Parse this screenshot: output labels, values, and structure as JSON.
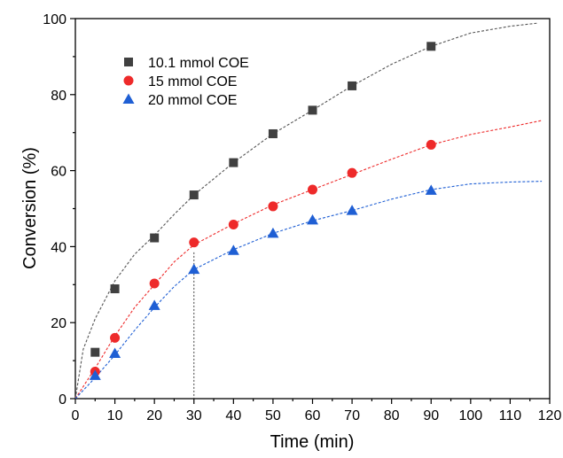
{
  "chart_data": {
    "type": "scatter",
    "xlabel": "Time (min)",
    "ylabel": "Conversion (%)",
    "xlim": [
      0,
      120
    ],
    "ylim": [
      0,
      100
    ],
    "x_ticks": [
      "0",
      "10",
      "20",
      "30",
      "40",
      "50",
      "60",
      "70",
      "80",
      "90",
      "100",
      "110",
      "120"
    ],
    "y_ticks": [
      "0",
      "20",
      "40",
      "60",
      "80",
      "100"
    ],
    "grid": false,
    "legend_position": "top-left",
    "reference_line": {
      "x": 30,
      "y": 38.5
    },
    "series": [
      {
        "name": "10.1 mmol COE",
        "marker": "square",
        "color": "#404040",
        "x": [
          5,
          10,
          20,
          30,
          40,
          50,
          60,
          70,
          90
        ],
        "y": [
          12.2,
          28.9,
          42.3,
          53.6,
          62.1,
          69.7,
          75.9,
          82.3,
          92.7
        ],
        "fit_x": [
          0,
          2,
          5,
          10,
          15,
          20,
          25,
          30,
          40,
          50,
          60,
          70,
          80,
          90,
          100,
          110,
          117
        ],
        "fit_y": [
          0,
          13,
          21,
          31,
          38,
          43,
          48.5,
          53.6,
          62.1,
          69.7,
          75.9,
          82.3,
          88,
          92.7,
          96.2,
          98,
          98.8
        ],
        "fit_color": "#555555"
      },
      {
        "name": "15 mmol COE",
        "marker": "circle",
        "color": "#ee2a2a",
        "x": [
          5,
          10,
          20,
          30,
          40,
          50,
          60,
          70,
          90
        ],
        "y": [
          7.1,
          16.0,
          30.3,
          41.1,
          45.8,
          50.6,
          55.0,
          59.4,
          66.8
        ],
        "fit_x": [
          0,
          5,
          10,
          15,
          20,
          25,
          30,
          40,
          50,
          60,
          70,
          80,
          90,
          100,
          110,
          118
        ],
        "fit_y": [
          0,
          8,
          16.5,
          24,
          30,
          36,
          40.5,
          46,
          51,
          55,
          59,
          63,
          66.8,
          69.5,
          71.5,
          73.2
        ],
        "fit_color": "#ee2a2a"
      },
      {
        "name": "20 mmol COE",
        "marker": "triangle",
        "color": "#1f5fd4",
        "x": [
          5,
          10,
          20,
          30,
          40,
          50,
          60,
          70,
          90
        ],
        "y": [
          6.1,
          11.9,
          24.5,
          34.0,
          39.0,
          43.5,
          47.0,
          49.5,
          54.8
        ],
        "fit_x": [
          0,
          5,
          10,
          15,
          20,
          25,
          30,
          40,
          50,
          60,
          70,
          80,
          90,
          100,
          110,
          118
        ],
        "fit_y": [
          0,
          5.5,
          11.5,
          18,
          24,
          29.5,
          34,
          39.2,
          43.5,
          46.8,
          49.5,
          52.5,
          55,
          56.5,
          57,
          57.2
        ],
        "fit_color": "#1f5fd4"
      }
    ]
  }
}
